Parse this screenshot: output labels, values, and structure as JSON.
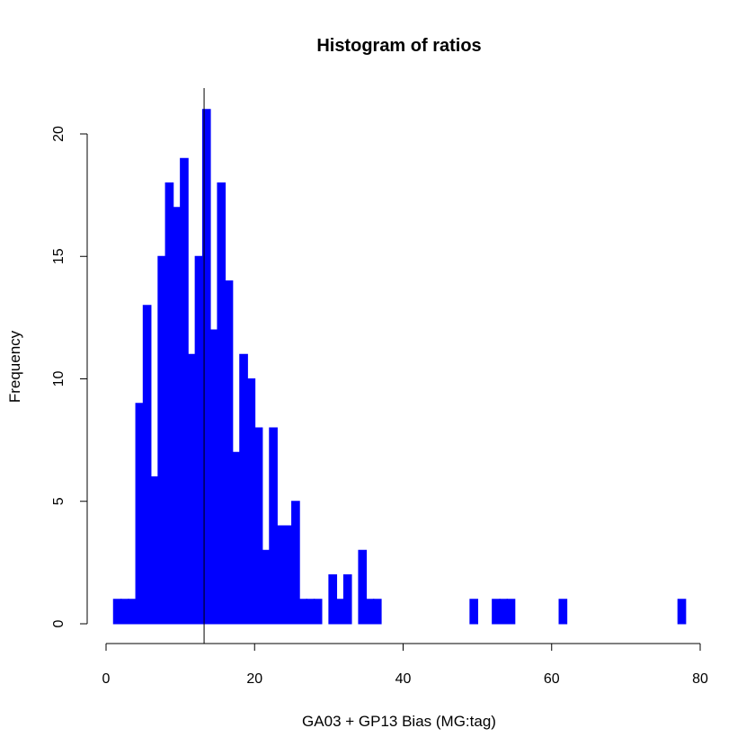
{
  "chart_data": {
    "type": "histogram",
    "title": "Histogram of ratios",
    "xlabel": "GA03 + GP13 Bias (MG:tag)",
    "ylabel": "Frequency",
    "xlim": [
      0,
      80
    ],
    "ylim": [
      0,
      21
    ],
    "x_ticks": [
      "0",
      "20",
      "40",
      "60",
      "80"
    ],
    "y_ticks": [
      "0",
      "5",
      "10",
      "15",
      "20"
    ],
    "bin_width": 1,
    "bin_start": 1,
    "counts": [
      1,
      1,
      1,
      9,
      13,
      6,
      15,
      18,
      17,
      19,
      11,
      15,
      21,
      12,
      18,
      14,
      7,
      11,
      10,
      8,
      3,
      8,
      4,
      4,
      5,
      1,
      1,
      1,
      0,
      2,
      1,
      2,
      0,
      3,
      1,
      1,
      0,
      0,
      0,
      0,
      0,
      0,
      0,
      0,
      0,
      0,
      0,
      0,
      1,
      0,
      0,
      1,
      1,
      1,
      0,
      0,
      0,
      0,
      0,
      0,
      1,
      0,
      0,
      0,
      0,
      0,
      0,
      0,
      0,
      0,
      0,
      0,
      0,
      0,
      0,
      0,
      1
    ],
    "bar_color": "#0000ff",
    "reference_line_x": 13.2,
    "grid": false,
    "legend": "none"
  }
}
